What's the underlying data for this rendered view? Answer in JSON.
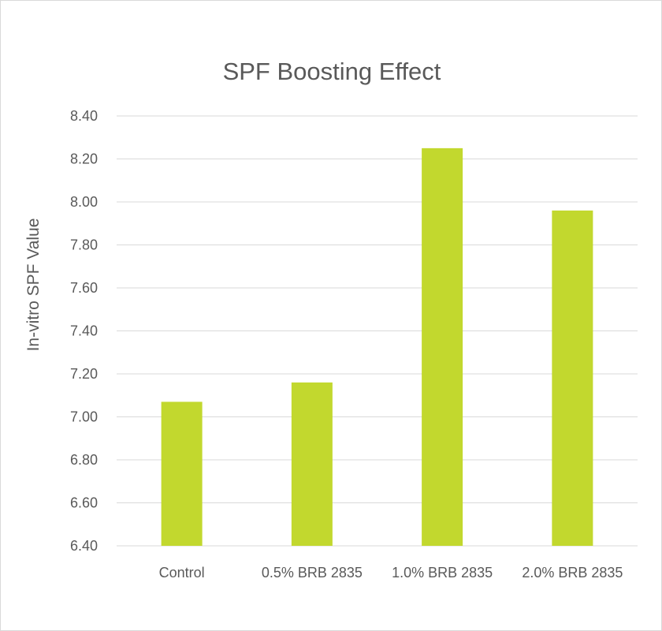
{
  "chart_data": {
    "type": "bar",
    "title": "SPF Boosting Effect",
    "xlabel": "",
    "ylabel": "In-vitro SPF Value",
    "categories": [
      "Control",
      "0.5% BRB 2835",
      "1.0% BRB 2835",
      "2.0% BRB 2835"
    ],
    "values": [
      7.07,
      7.16,
      8.25,
      7.96
    ],
    "ylim": [
      6.4,
      8.4
    ],
    "yticks": [
      "6.40",
      "6.60",
      "6.80",
      "7.00",
      "7.20",
      "7.40",
      "7.60",
      "7.80",
      "8.00",
      "8.20",
      "8.40"
    ],
    "grid": true,
    "legend": "none",
    "bar_color": "#c2d82e"
  }
}
